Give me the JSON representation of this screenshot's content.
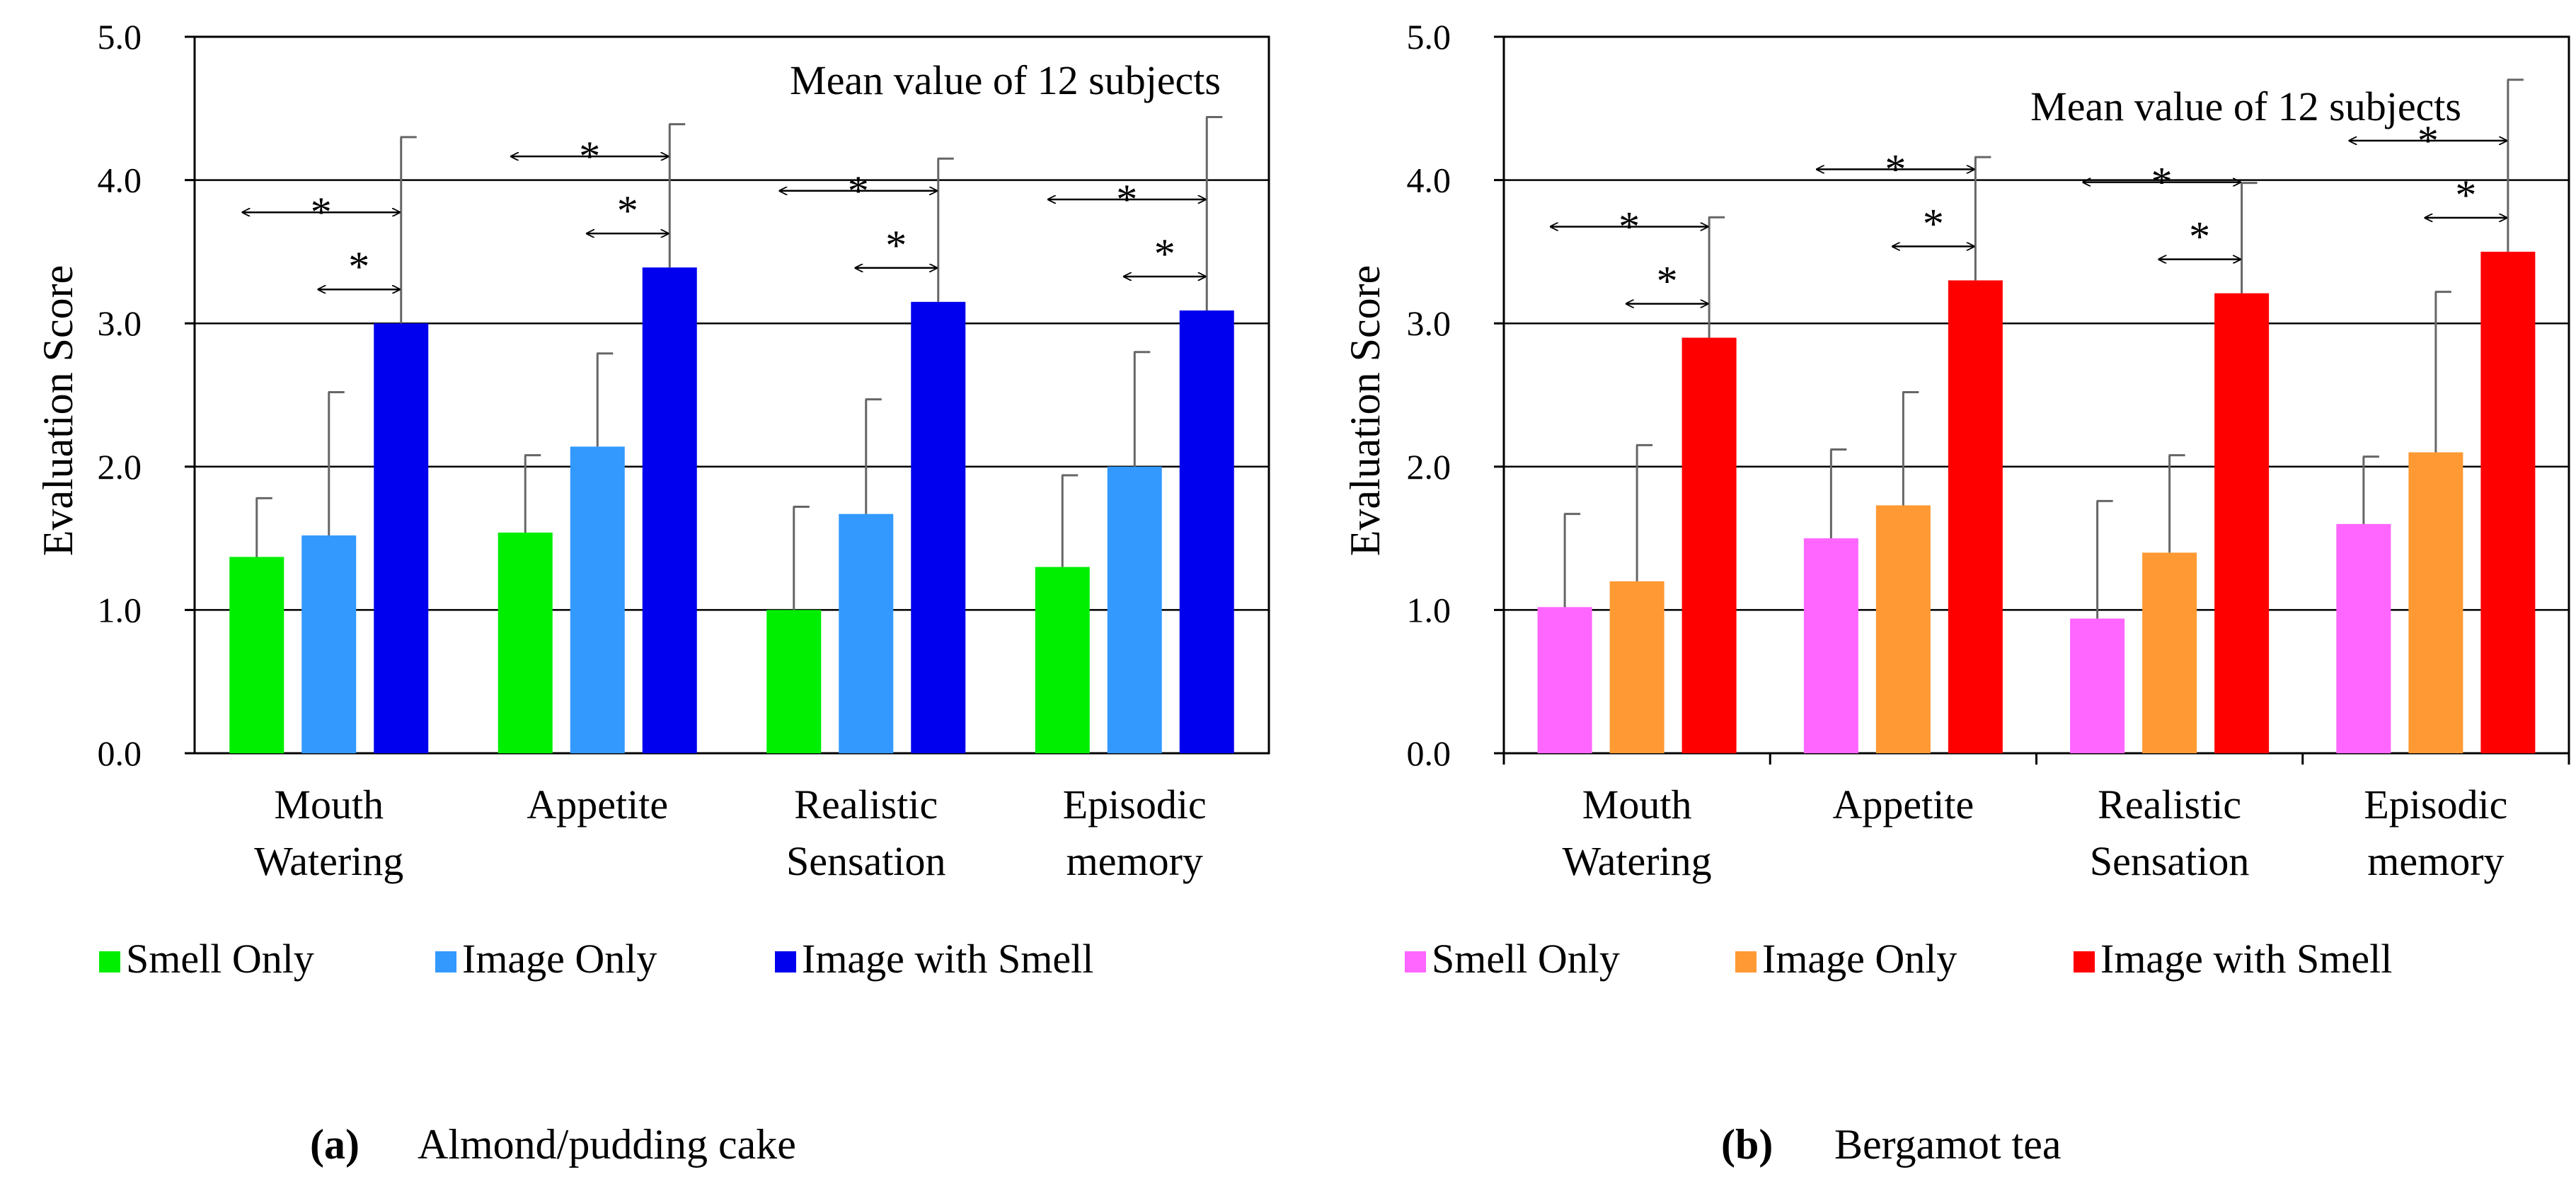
{
  "chart_data": [
    {
      "type": "bar",
      "panel_label": "(a)",
      "caption": "Almond/pudding cake",
      "annotation": "Mean value of 12 subjects",
      "ylabel": "Evaluation Score",
      "xlabel": "",
      "ylim": [
        0,
        5
      ],
      "yticks": [
        "0.0",
        "1.0",
        "2.0",
        "3.0",
        "4.0",
        "5.0"
      ],
      "grid": true,
      "categories": [
        [
          "Mouth",
          "Watering"
        ],
        [
          "Appetite"
        ],
        [
          "Realistic",
          "Sensation"
        ],
        [
          "Episodic",
          "memory"
        ]
      ],
      "series": [
        {
          "name": "Smell Only",
          "color": "#00ee00",
          "values": [
            1.37,
            1.54,
            1.0,
            1.3
          ],
          "errors": [
            0.41,
            0.54,
            0.72,
            0.64
          ]
        },
        {
          "name": "Image Only",
          "color": "#3399ff",
          "values": [
            1.52,
            2.14,
            1.67,
            2.0
          ],
          "errors": [
            1.0,
            0.65,
            0.8,
            0.8
          ]
        },
        {
          "name": "Image with Smell",
          "color": "#0000ee",
          "values": [
            3.0,
            3.39,
            3.15,
            3.09
          ],
          "errors": [
            1.3,
            1.0,
            1.0,
            1.35
          ]
        }
      ],
      "significance": [
        {
          "category": 0,
          "from_series": 0,
          "to_series": 2,
          "label": "*"
        },
        {
          "category": 0,
          "from_series": 1,
          "to_series": 2,
          "label": "*"
        },
        {
          "category": 1,
          "from_series": 0,
          "to_series": 2,
          "label": "*"
        },
        {
          "category": 1,
          "from_series": 1,
          "to_series": 2,
          "label": "*"
        },
        {
          "category": 2,
          "from_series": 0,
          "to_series": 2,
          "label": "*"
        },
        {
          "category": 2,
          "from_series": 1,
          "to_series": 2,
          "label": "*"
        },
        {
          "category": 3,
          "from_series": 0,
          "to_series": 2,
          "label": "*"
        },
        {
          "category": 3,
          "from_series": 1,
          "to_series": 2,
          "label": "*"
        }
      ],
      "legend": [
        "Smell Only",
        "Image Only",
        "Image with Smell"
      ]
    },
    {
      "type": "bar",
      "panel_label": "(b)",
      "caption": "Bergamot tea",
      "annotation": "Mean value of 12 subjects",
      "ylabel": "Evaluation Score",
      "xlabel": "",
      "ylim": [
        0,
        5
      ],
      "yticks": [
        "0.0",
        "1.0",
        "2.0",
        "3.0",
        "4.0",
        "5.0"
      ],
      "grid": true,
      "categories": [
        [
          "Mouth",
          "Watering"
        ],
        [
          "Appetite"
        ],
        [
          "Realistic",
          "Sensation"
        ],
        [
          "Episodic",
          "memory"
        ]
      ],
      "series": [
        {
          "name": "Smell Only",
          "color": "#ff66ff",
          "values": [
            1.02,
            1.5,
            0.94,
            1.6
          ],
          "errors": [
            0.65,
            0.62,
            0.82,
            0.47
          ]
        },
        {
          "name": "Image Only",
          "color": "#ff9933",
          "values": [
            1.2,
            1.73,
            1.4,
            2.1
          ],
          "errors": [
            0.95,
            0.79,
            0.68,
            1.12
          ]
        },
        {
          "name": "Image with Smell",
          "color": "#ff0000",
          "values": [
            2.9,
            3.3,
            3.21,
            3.5
          ],
          "errors": [
            0.84,
            0.86,
            0.77,
            1.2
          ]
        }
      ],
      "significance": [
        {
          "category": 0,
          "from_series": 0,
          "to_series": 2,
          "label": "*"
        },
        {
          "category": 0,
          "from_series": 1,
          "to_series": 2,
          "label": "*"
        },
        {
          "category": 1,
          "from_series": 0,
          "to_series": 2,
          "label": "*"
        },
        {
          "category": 1,
          "from_series": 1,
          "to_series": 2,
          "label": "*"
        },
        {
          "category": 2,
          "from_series": 0,
          "to_series": 2,
          "label": "*"
        },
        {
          "category": 2,
          "from_series": 1,
          "to_series": 2,
          "label": "*"
        },
        {
          "category": 3,
          "from_series": 0,
          "to_series": 2,
          "label": "*"
        },
        {
          "category": 3,
          "from_series": 1,
          "to_series": 2,
          "label": "*"
        }
      ],
      "legend": [
        "Smell Only",
        "Image Only",
        "Image with Smell"
      ]
    }
  ]
}
